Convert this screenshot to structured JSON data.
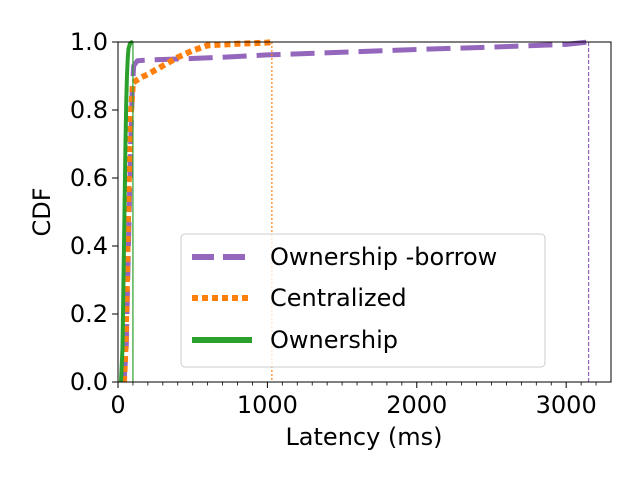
{
  "chart_data": {
    "type": "line",
    "title": "",
    "xlabel": "Latency (ms)",
    "ylabel": "CDF",
    "xlim": [
      0,
      3300
    ],
    "ylim": [
      0,
      1.0
    ],
    "xticks": [
      0,
      1000,
      2000,
      3000
    ],
    "xtick_labels": [
      "0",
      "1000",
      "2000",
      "3000"
    ],
    "yticks": [
      0.0,
      0.2,
      0.4,
      0.6,
      0.8,
      1.0
    ],
    "ytick_labels": [
      "0.0",
      "0.2",
      "0.4",
      "0.6",
      "0.8",
      "1.0"
    ],
    "grid": false,
    "legend_position": "lower-right",
    "series": [
      {
        "name": "Ownership -borrow",
        "color": "#9467bd",
        "style": "dashed",
        "max_marker": 3150,
        "x": [
          40,
          55,
          65,
          75,
          85,
          95,
          105,
          130,
          200,
          400,
          700,
          1000,
          1500,
          2000,
          2500,
          3000,
          3150
        ],
        "y": [
          0.0,
          0.1,
          0.3,
          0.5,
          0.7,
          0.85,
          0.93,
          0.945,
          0.947,
          0.95,
          0.955,
          0.962,
          0.97,
          0.978,
          0.985,
          0.993,
          1.0
        ]
      },
      {
        "name": "Centralized",
        "color": "#ff7f0e",
        "style": "dotted",
        "max_marker": 1030,
        "x": [
          40,
          50,
          60,
          70,
          80,
          100,
          150,
          200,
          300,
          400,
          500,
          600,
          800,
          1000,
          1030
        ],
        "y": [
          0.0,
          0.1,
          0.3,
          0.55,
          0.75,
          0.88,
          0.895,
          0.905,
          0.93,
          0.955,
          0.975,
          0.99,
          0.995,
          0.998,
          1.0
        ]
      },
      {
        "name": "Ownership",
        "color": "#2ca02c",
        "style": "solid",
        "max_marker": 100,
        "x": [
          20,
          30,
          35,
          40,
          45,
          50,
          55,
          60,
          65,
          70,
          80,
          90,
          100
        ],
        "y": [
          0.0,
          0.1,
          0.25,
          0.4,
          0.55,
          0.7,
          0.82,
          0.9,
          0.95,
          0.98,
          0.995,
          0.999,
          1.0
        ]
      }
    ]
  }
}
